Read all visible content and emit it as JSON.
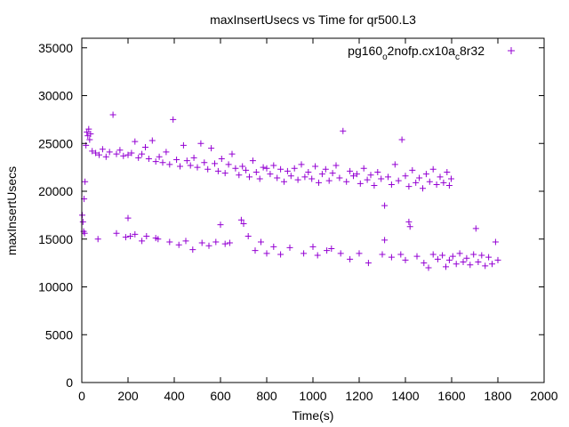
{
  "chart_data": {
    "type": "scatter",
    "title": "maxInsertUsecs vs Time for qr500.L3",
    "xlabel": "Time(s)",
    "ylabel": "maxInsertUsecs",
    "xlim": [
      0,
      2000
    ],
    "ylim": [
      0,
      36000
    ],
    "x_ticks": [
      0,
      200,
      400,
      600,
      800,
      1000,
      1200,
      1400,
      1600,
      1800,
      2000
    ],
    "y_ticks": [
      0,
      5000,
      10000,
      15000,
      20000,
      25000,
      30000,
      35000
    ],
    "grid": false,
    "legend_position": "top-right",
    "legend": {
      "parts": [
        "pg160",
        "o",
        "2nofp.cx10a",
        "c",
        "8r32"
      ]
    },
    "series": [
      {
        "name": "pg160_o2nofp.cx10a_c8r32",
        "color": "#9400d3",
        "marker": "+",
        "points": [
          [
            2,
            17500
          ],
          [
            5,
            16800
          ],
          [
            8,
            15800
          ],
          [
            10,
            19200
          ],
          [
            12,
            15600
          ],
          [
            14,
            21000
          ],
          [
            18,
            24800
          ],
          [
            22,
            26200
          ],
          [
            26,
            25800
          ],
          [
            30,
            26500
          ],
          [
            34,
            25400
          ],
          [
            38,
            26000
          ],
          [
            45,
            24200
          ],
          [
            60,
            24000
          ],
          [
            75,
            23800
          ],
          [
            90,
            24400
          ],
          [
            105,
            23600
          ],
          [
            120,
            24100
          ],
          [
            135,
            28000
          ],
          [
            150,
            23900
          ],
          [
            165,
            24300
          ],
          [
            180,
            23700
          ],
          [
            200,
            23800
          ],
          [
            215,
            24000
          ],
          [
            230,
            25200
          ],
          [
            245,
            23500
          ],
          [
            260,
            23900
          ],
          [
            275,
            24600
          ],
          [
            290,
            23400
          ],
          [
            305,
            25300
          ],
          [
            320,
            23100
          ],
          [
            335,
            23600
          ],
          [
            350,
            23000
          ],
          [
            365,
            24100
          ],
          [
            380,
            22800
          ],
          [
            395,
            27500
          ],
          [
            410,
            23300
          ],
          [
            425,
            22600
          ],
          [
            440,
            24800
          ],
          [
            455,
            23200
          ],
          [
            470,
            22700
          ],
          [
            485,
            23500
          ],
          [
            500,
            22500
          ],
          [
            515,
            25000
          ],
          [
            530,
            23000
          ],
          [
            545,
            22300
          ],
          [
            560,
            24500
          ],
          [
            575,
            22900
          ],
          [
            590,
            22100
          ],
          [
            605,
            23400
          ],
          [
            620,
            21900
          ],
          [
            635,
            22800
          ],
          [
            650,
            23900
          ],
          [
            665,
            22400
          ],
          [
            680,
            21700
          ],
          [
            695,
            22600
          ],
          [
            710,
            22200
          ],
          [
            725,
            21500
          ],
          [
            740,
            23200
          ],
          [
            755,
            22000
          ],
          [
            770,
            21300
          ],
          [
            785,
            22500
          ],
          [
            800,
            22400
          ],
          [
            815,
            21800
          ],
          [
            830,
            22700
          ],
          [
            845,
            21400
          ],
          [
            860,
            22300
          ],
          [
            875,
            21000
          ],
          [
            890,
            22100
          ],
          [
            905,
            21600
          ],
          [
            920,
            22400
          ],
          [
            935,
            21200
          ],
          [
            950,
            22800
          ],
          [
            965,
            21500
          ],
          [
            980,
            22000
          ],
          [
            995,
            21300
          ],
          [
            1010,
            22600
          ],
          [
            1025,
            20900
          ],
          [
            1040,
            21800
          ],
          [
            1055,
            22300
          ],
          [
            1070,
            21100
          ],
          [
            1085,
            21900
          ],
          [
            1100,
            22700
          ],
          [
            1115,
            21400
          ],
          [
            1130,
            26300
          ],
          [
            1145,
            21000
          ],
          [
            1160,
            22100
          ],
          [
            1175,
            21600
          ],
          [
            1190,
            21800
          ],
          [
            1205,
            20800
          ],
          [
            1220,
            22400
          ],
          [
            1235,
            21200
          ],
          [
            1250,
            21700
          ],
          [
            1265,
            20600
          ],
          [
            1280,
            22000
          ],
          [
            1295,
            21300
          ],
          [
            1310,
            18500
          ],
          [
            1325,
            21500
          ],
          [
            1340,
            20700
          ],
          [
            1355,
            22800
          ],
          [
            1370,
            21100
          ],
          [
            1385,
            25400
          ],
          [
            1400,
            21600
          ],
          [
            1415,
            20500
          ],
          [
            1430,
            22200
          ],
          [
            1445,
            20900
          ],
          [
            1460,
            21400
          ],
          [
            1475,
            20300
          ],
          [
            1490,
            21800
          ],
          [
            1505,
            21000
          ],
          [
            1520,
            22300
          ],
          [
            1535,
            20700
          ],
          [
            1550,
            21500
          ],
          [
            1565,
            20900
          ],
          [
            1580,
            22000
          ],
          [
            1590,
            20600
          ],
          [
            1598,
            21300
          ],
          [
            70,
            15000
          ],
          [
            150,
            15600
          ],
          [
            190,
            15200
          ],
          [
            200,
            17200
          ],
          [
            210,
            15300
          ],
          [
            230,
            15500
          ],
          [
            260,
            14800
          ],
          [
            280,
            15300
          ],
          [
            320,
            15100
          ],
          [
            330,
            15000
          ],
          [
            380,
            14700
          ],
          [
            420,
            14400
          ],
          [
            450,
            14800
          ],
          [
            480,
            13900
          ],
          [
            520,
            14600
          ],
          [
            550,
            14300
          ],
          [
            580,
            14700
          ],
          [
            600,
            16500
          ],
          [
            620,
            14500
          ],
          [
            640,
            14600
          ],
          [
            690,
            17000
          ],
          [
            700,
            16600
          ],
          [
            720,
            15300
          ],
          [
            750,
            13800
          ],
          [
            775,
            14700
          ],
          [
            800,
            13500
          ],
          [
            830,
            14200
          ],
          [
            860,
            13400
          ],
          [
            900,
            14100
          ],
          [
            960,
            13500
          ],
          [
            1000,
            14200
          ],
          [
            1020,
            13300
          ],
          [
            1060,
            13800
          ],
          [
            1080,
            14000
          ],
          [
            1120,
            13500
          ],
          [
            1160,
            12900
          ],
          [
            1200,
            13500
          ],
          [
            1240,
            12500
          ],
          [
            1300,
            13400
          ],
          [
            1310,
            14900
          ],
          [
            1340,
            13100
          ],
          [
            1380,
            13400
          ],
          [
            1400,
            12800
          ],
          [
            1415,
            16800
          ],
          [
            1420,
            16300
          ],
          [
            1450,
            13200
          ],
          [
            1480,
            12500
          ],
          [
            1500,
            12000
          ],
          [
            1520,
            13400
          ],
          [
            1540,
            12900
          ],
          [
            1560,
            13300
          ],
          [
            1575,
            12100
          ],
          [
            1590,
            12800
          ],
          [
            1605,
            13200
          ],
          [
            1620,
            12400
          ],
          [
            1635,
            13500
          ],
          [
            1650,
            12600
          ],
          [
            1665,
            13000
          ],
          [
            1680,
            12300
          ],
          [
            1695,
            13400
          ],
          [
            1705,
            16100
          ],
          [
            1715,
            12600
          ],
          [
            1730,
            13300
          ],
          [
            1745,
            12200
          ],
          [
            1760,
            13100
          ],
          [
            1775,
            12400
          ],
          [
            1790,
            14700
          ],
          [
            1800,
            12800
          ]
        ]
      }
    ]
  }
}
